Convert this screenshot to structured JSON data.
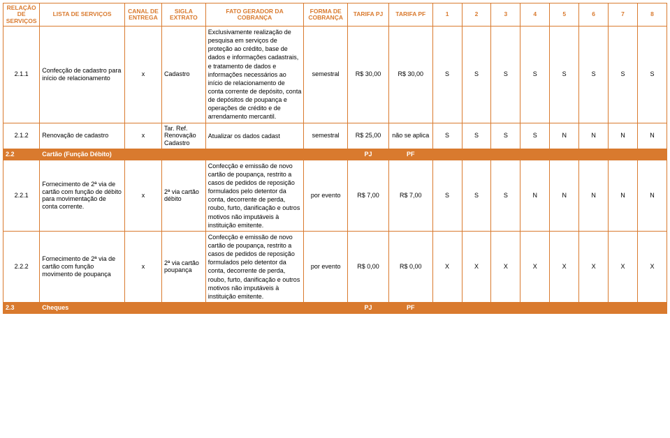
{
  "header": {
    "relacao": "RELAÇÃO DE SERVIÇOS",
    "lista": "LISTA DE SERVIÇOS",
    "canal": "CANAL DE ENTREGA",
    "sigla": "SIGLA EXTRATO",
    "fato": "FATO GERADOR DA COBRANÇA",
    "forma": "FORMA DE COBRANÇA",
    "tarifa_pj": "TARIFA  PJ",
    "tarifa_pf": "TARIFA PF",
    "n1": "1",
    "n2": "2",
    "n3": "3",
    "n4": "4",
    "n5": "5",
    "n6": "6",
    "n7": "7",
    "n8": "8"
  },
  "rows": {
    "r211": {
      "rel": "2.1.1",
      "lista": "Confecção de cadastro para início de relacionamento",
      "canal": "x",
      "sigla": "Cadastro",
      "fato": "Exclusivamente realização de pesquisa em serviços de proteção ao crédito, base de dados e informações cadastrais, e tratamento de dados e informações necessários ao início de relacionamento de conta corrente de depósito, conta de depósitos de poupança e operações de crédito e de arrendamento mercantil.",
      "forma": "semestral",
      "tarifa_pj": "R$ 30,00",
      "tarifa_pf": "R$ 30,00",
      "c1": "S",
      "c2": "S",
      "c3": "S",
      "c4": "S",
      "c5": "S",
      "c6": "S",
      "c7": "S",
      "c8": "S"
    },
    "r212": {
      "rel": "2.1.2",
      "lista": "Renovação de cadastro",
      "canal": "x",
      "sigla": "Tar. Ref. Renovação Cadastro",
      "fato": "Atualizar os dados cadast",
      "forma": "semestral",
      "tarifa_pj": "R$ 25,00",
      "tarifa_pf": "não se aplica",
      "c1": "S",
      "c2": "S",
      "c3": "S",
      "c4": "S",
      "c5": "N",
      "c6": "N",
      "c7": "N",
      "c8": "N"
    },
    "s22": {
      "rel": "2.2",
      "title": "Cartão (Função Débito)",
      "pj": "PJ",
      "pf": "PF"
    },
    "r221": {
      "rel": "2.2.1",
      "lista": "Fornecimento de 2ª via de cartão com função de débito para movimentação de conta corrente.",
      "canal": "x",
      "sigla": "2ª via cartão débito",
      "fato": "Confecção e emissão de novo cartão de poupança, restrito a casos de pedidos de reposição formulados pelo detentor da conta, decorrente de perda, roubo, furto, danificação e outros motivos não imputáveis à instituição emitente.",
      "forma": "por evento",
      "tarifa_pj": "R$ 7,00",
      "tarifa_pf": "R$ 7,00",
      "c1": "S",
      "c2": "S",
      "c3": "S",
      "c4": "N",
      "c5": "N",
      "c6": "N",
      "c7": "N",
      "c8": "N"
    },
    "r222": {
      "rel": "2.2.2",
      "lista": "Fornecimento de 2ª via de cartão com função movimento de poupança",
      "canal": "x",
      "sigla": "2ª via cartão poupança",
      "fato": "Confecção e emissão de novo cartão de poupança, restrito a casos de pedidos de reposição formulados pelo detentor da conta, decorrente de perda, roubo, furto, danificação e outros motivos não imputáveis à instituição emitente.",
      "forma": "por evento",
      "tarifa_pj": "R$ 0,00",
      "tarifa_pf": "R$ 0,00",
      "c1": "X",
      "c2": "X",
      "c3": "X",
      "c4": "X",
      "c5": "X",
      "c6": "X",
      "c7": "X",
      "c8": "X"
    },
    "s23": {
      "rel": "2.3",
      "title": "Cheques",
      "pj": "PJ",
      "pf": "PF"
    }
  },
  "style": {
    "accent_color": "#d97a2e",
    "background": "#ffffff",
    "text_color": "#000000",
    "font_family": "Arial, sans-serif",
    "font_size_header": 8.5,
    "font_size_body": 9
  }
}
